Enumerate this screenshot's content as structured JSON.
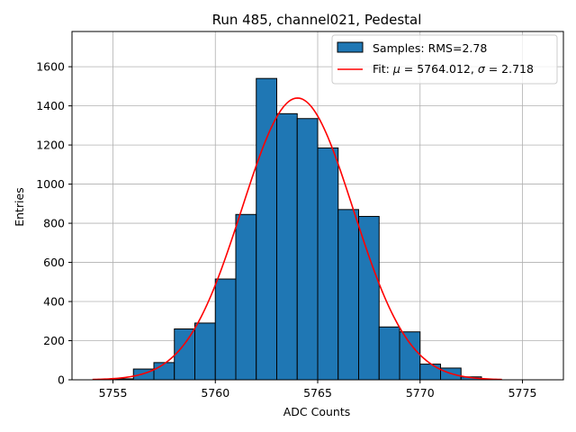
{
  "chart_data": {
    "type": "bar",
    "title": "Run 485, channel021, Pedestal",
    "xlabel": "ADC Counts",
    "ylabel": "Entries",
    "xlim": [
      5753.0,
      5777.0
    ],
    "ylim": [
      0,
      1780
    ],
    "xticks": [
      5755,
      5760,
      5765,
      5770,
      5775
    ],
    "yticks": [
      0,
      200,
      400,
      600,
      800,
      1000,
      1200,
      1400,
      1600
    ],
    "grid": true,
    "legend_position": "top-right",
    "bin_width": 1,
    "histogram": {
      "name": "Samples: RMS=2.78",
      "color": "#1f77b4",
      "edge_color": "#000000",
      "bin_left_edges": [
        5755,
        5756,
        5757,
        5758,
        5759,
        5760,
        5761,
        5762,
        5763,
        5764,
        5765,
        5766,
        5767,
        5768,
        5769,
        5770,
        5771,
        5772
      ],
      "counts": [
        5,
        55,
        88,
        260,
        290,
        515,
        845,
        1540,
        1360,
        1335,
        1185,
        870,
        835,
        270,
        245,
        80,
        60,
        15
      ]
    },
    "fit": {
      "name_prefix": "Fit: ",
      "name_mu": "μ",
      "name_mid": " = 5764.012, ",
      "name_sigma": "σ",
      "name_suffix": " = 2.718",
      "color": "#ff0000",
      "mu": 5764.012,
      "sigma": 2.718,
      "amplitude": 1440,
      "x_range": [
        5754,
        5774
      ]
    }
  }
}
